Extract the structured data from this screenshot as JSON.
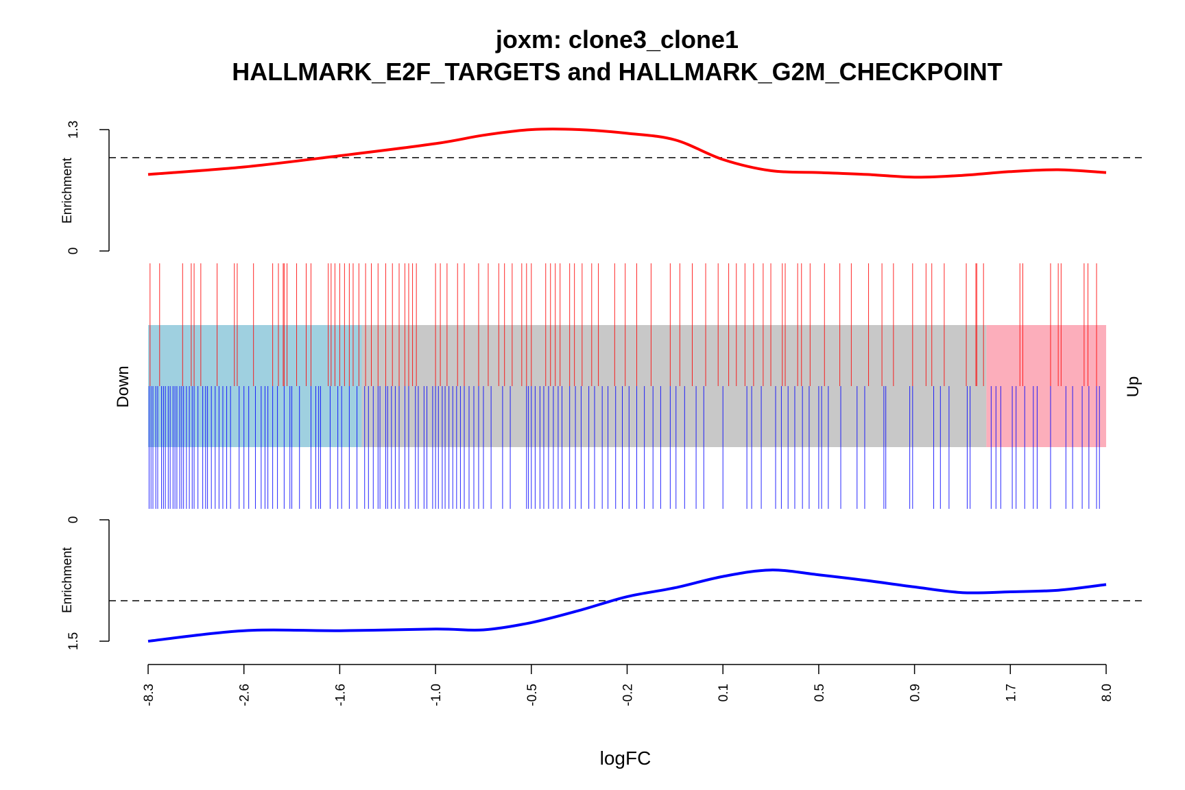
{
  "chart_data": {
    "type": "barcode",
    "title": [
      "joxm: clone3_clone1",
      "HALLMARK_E2F_TARGETS and HALLMARK_G2M_CHECKPOINT"
    ],
    "xlabel": "logFC",
    "x_ticks": [
      "-8.3",
      "-2.6",
      "-1.6",
      "-1.0",
      "-0.5",
      "-0.2",
      "0.1",
      "0.5",
      "0.9",
      "1.7",
      "8.0"
    ],
    "side_labels": {
      "left": "Down",
      "right": "Up"
    },
    "rank_range": [
      0,
      1000
    ],
    "bands": [
      {
        "name": "down",
        "from": 0,
        "to": 223,
        "color": "#9fd0e0"
      },
      {
        "name": "middle",
        "from": 223,
        "to": 875,
        "color": "#c8c8c8"
      },
      {
        "name": "up",
        "from": 875,
        "to": 1000,
        "color": "#fcaebb"
      }
    ],
    "series": [
      {
        "name": "HALLMARK_E2F_TARGETS",
        "color": "#ff0000",
        "enrichment_ylabel": "Enrichment",
        "enrichment_yticks": [
          "0",
          "1.3"
        ],
        "ylim": [
          0,
          1.3
        ],
        "reference_line": 1.0,
        "enrichment_x": [
          0,
          100,
          200,
          300,
          350,
          400,
          450,
          500,
          550,
          600,
          650,
          700,
          750,
          800,
          850,
          900,
          950,
          1000
        ],
        "enrichment_y": [
          0.82,
          0.9,
          1.02,
          1.15,
          1.24,
          1.3,
          1.3,
          1.26,
          1.19,
          0.98,
          0.86,
          0.84,
          0.82,
          0.79,
          0.81,
          0.85,
          0.87,
          0.84
        ],
        "ranks": [
          2,
          12,
          36,
          45,
          48,
          55,
          72,
          90,
          93,
          110,
          130,
          136,
          141,
          142,
          145,
          155,
          165,
          170,
          188,
          191,
          195,
          200,
          205,
          210,
          214,
          220,
          227,
          233,
          240,
          248,
          255,
          262,
          268,
          272,
          276,
          280,
          300,
          305,
          312,
          323,
          330,
          345,
          355,
          366,
          372,
          380,
          390,
          395,
          400,
          415,
          420,
          425,
          430,
          440,
          445,
          453,
          463,
          470,
          487,
          498,
          510,
          525,
          545,
          555,
          568,
          582,
          595,
          606,
          614,
          623,
          632,
          642,
          650,
          662,
          665,
          678,
          682,
          691,
          706,
          722,
          734,
          752,
          766,
          778,
          798,
          812,
          818,
          831,
          854,
          864,
          865,
          872,
          910,
          913,
          942,
          950,
          953,
          977,
          981,
          990
        ]
      },
      {
        "name": "HALLMARK_G2M_CHECKPOINT",
        "color": "#0000ff",
        "enrichment_ylabel": "Enrichment",
        "enrichment_yticks": [
          "0",
          "1.5"
        ],
        "ylim": [
          0,
          1.5
        ],
        "reference_line": 1.0,
        "enrichment_x": [
          0,
          100,
          200,
          300,
          350,
          400,
          450,
          500,
          550,
          600,
          650,
          700,
          750,
          800,
          850,
          900,
          950,
          1000
        ],
        "enrichment_y": [
          1.5,
          1.37,
          1.37,
          1.35,
          1.36,
          1.27,
          1.12,
          0.95,
          0.84,
          0.7,
          0.62,
          0.68,
          0.75,
          0.83,
          0.9,
          0.89,
          0.87,
          0.8
        ],
        "ranks": [
          1,
          3,
          5,
          8,
          10,
          14,
          16,
          18,
          21,
          23,
          26,
          28,
          30,
          33,
          35,
          37,
          40,
          43,
          46,
          48,
          52,
          57,
          60,
          62,
          66,
          70,
          74,
          78,
          82,
          86,
          95,
          100,
          105,
          112,
          118,
          122,
          125,
          130,
          135,
          142,
          148,
          150,
          158,
          170,
          175,
          178,
          180,
          190,
          198,
          202,
          210,
          218,
          226,
          230,
          235,
          240,
          242,
          248,
          250,
          254,
          258,
          262,
          268,
          272,
          279,
          282,
          288,
          291,
          297,
          300,
          303,
          307,
          310,
          314,
          318,
          322,
          326,
          330,
          335,
          340,
          345,
          350,
          358,
          370,
          378,
          395,
          397,
          400,
          404,
          409,
          413,
          418,
          423,
          428,
          432,
          440,
          446,
          452,
          460,
          466,
          474,
          480,
          488,
          495,
          502,
          510,
          518,
          527,
          535,
          545,
          551,
          560,
          572,
          580,
          600,
          625,
          630,
          640,
          655,
          661,
          668,
          675,
          683,
          690,
          700,
          703,
          710,
          723,
          740,
          748,
          768,
          770,
          795,
          798,
          820,
          827,
          836,
          855,
          858,
          880,
          885,
          890,
          902,
          906,
          915,
          924,
          928,
          942,
          958,
          965,
          975,
          982,
          990,
          993
        ]
      }
    ]
  }
}
